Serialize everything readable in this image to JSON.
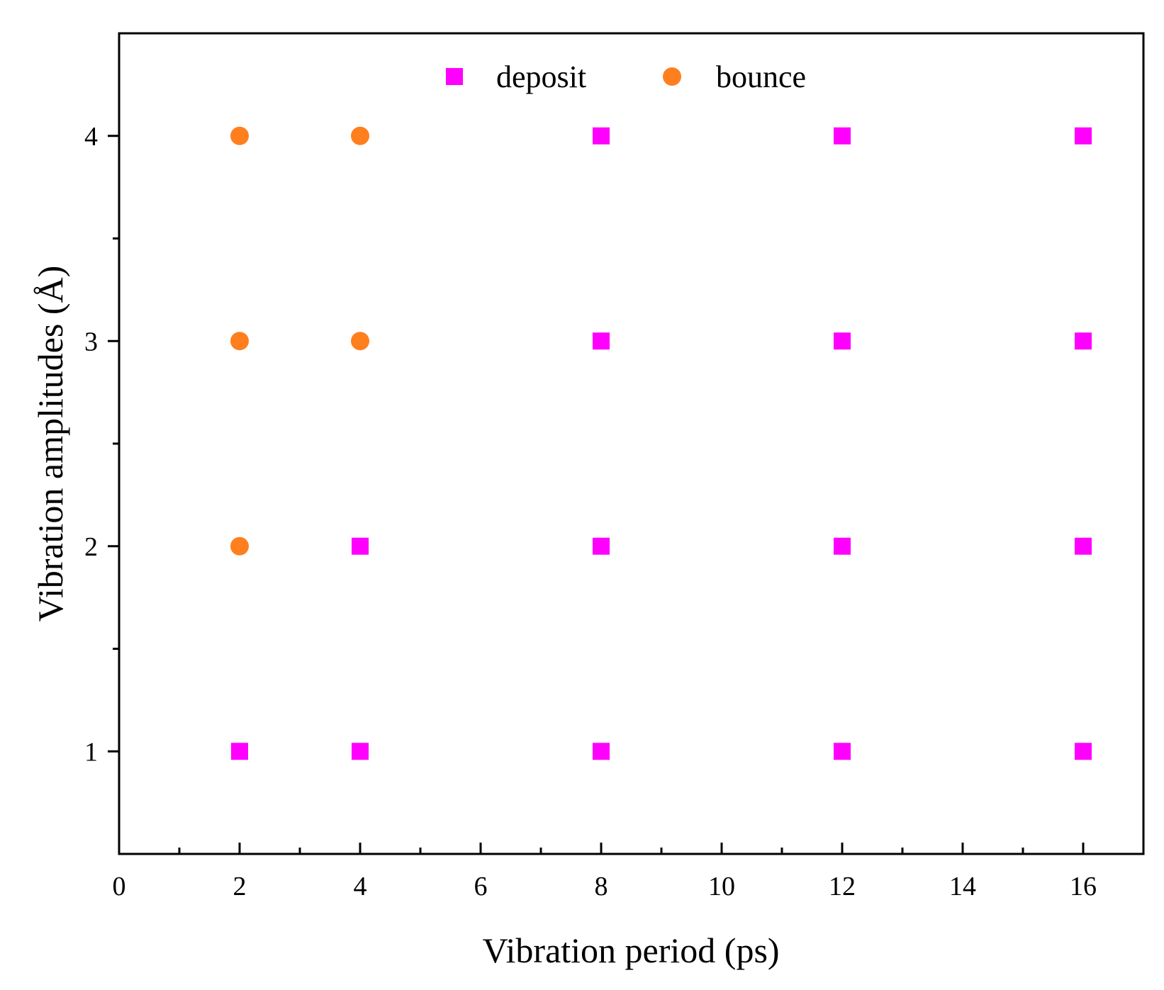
{
  "chart_data": {
    "type": "scatter",
    "title": "",
    "xlabel": "Vibration period (ps)",
    "ylabel": "Vibration amplitudes (Å)",
    "xlim": [
      0,
      17
    ],
    "ylim": [
      0.5,
      4.5
    ],
    "x_ticks": [
      0,
      2,
      4,
      6,
      8,
      10,
      12,
      14,
      16
    ],
    "x_tick_labels": [
      "0",
      "2",
      "4",
      "6",
      "8",
      "10",
      "12",
      "14",
      "16"
    ],
    "x_minor_ticks": [
      1,
      3,
      5,
      7,
      9,
      11,
      13,
      15
    ],
    "y_ticks": [
      1,
      2,
      3,
      4
    ],
    "y_tick_labels": [
      "1",
      "2",
      "3",
      "4"
    ],
    "y_minor_ticks": [
      1.5,
      2.5,
      3.5
    ],
    "grid": false,
    "legend_position": "top-center",
    "series": [
      {
        "name": "deposit",
        "marker": "square",
        "color": "#ff00ff",
        "points": [
          [
            2,
            1
          ],
          [
            4,
            1
          ],
          [
            8,
            1
          ],
          [
            12,
            1
          ],
          [
            16,
            1
          ],
          [
            4,
            2
          ],
          [
            8,
            2
          ],
          [
            12,
            2
          ],
          [
            16,
            2
          ],
          [
            8,
            3
          ],
          [
            12,
            3
          ],
          [
            16,
            3
          ],
          [
            8,
            4
          ],
          [
            12,
            4
          ],
          [
            16,
            4
          ]
        ]
      },
      {
        "name": "bounce",
        "marker": "circle",
        "color": "#ff7f1e",
        "points": [
          [
            2,
            2
          ],
          [
            2,
            3
          ],
          [
            4,
            3
          ],
          [
            2,
            4
          ],
          [
            4,
            4
          ]
        ]
      }
    ]
  }
}
